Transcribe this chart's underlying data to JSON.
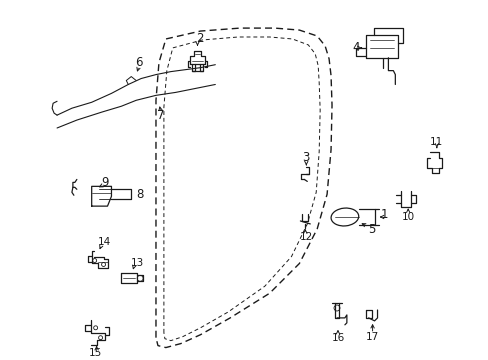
{
  "bg_color": "#ffffff",
  "line_color": "#1a1a1a",
  "dpi": 100,
  "figw": 4.89,
  "figh": 3.6
}
